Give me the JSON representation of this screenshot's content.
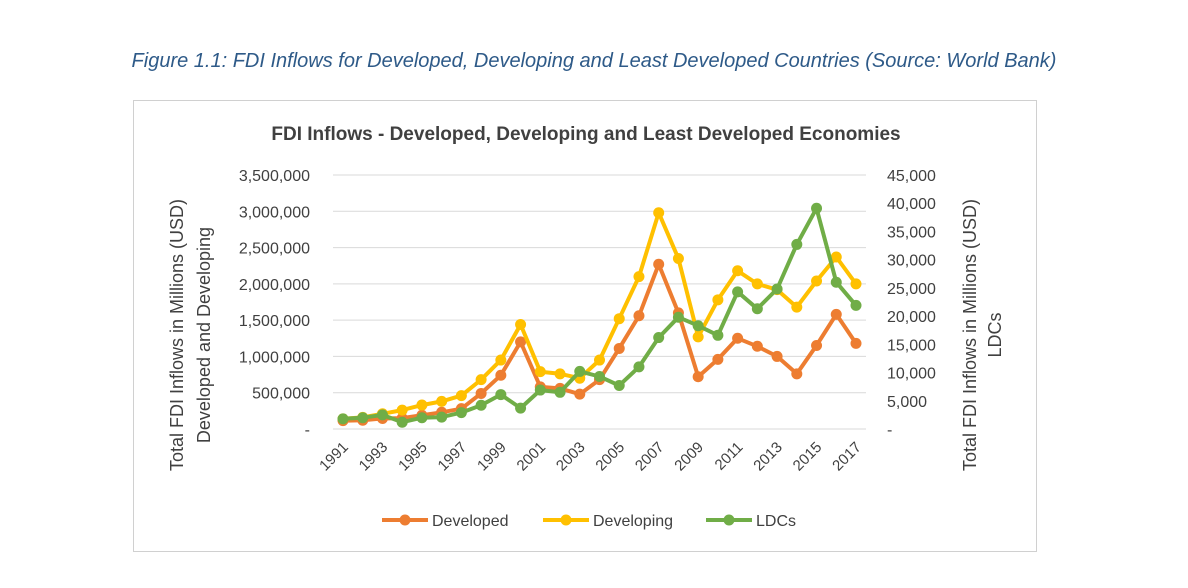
{
  "figure_caption": "Figure 1.1: FDI Inflows for Developed, Developing and Least Developed Countries (Source: World Bank)",
  "chart_data": {
    "type": "line",
    "title": "FDI Inflows - Developed, Developing and Least Developed Economies",
    "y_left_label_line1": "Total FDI Inflows in Millions (USD)",
    "y_left_label_line2": "Developed and Developing",
    "y_right_label_line1": "Total FDI Inflows in Millions (USD)",
    "y_right_label_line2": "LDCs",
    "x": [
      1991,
      1992,
      1993,
      1994,
      1995,
      1996,
      1997,
      1998,
      1999,
      2000,
      2001,
      2002,
      2003,
      2004,
      2005,
      2006,
      2007,
      2008,
      2009,
      2010,
      2011,
      2012,
      2013,
      2014,
      2015,
      2016,
      2017
    ],
    "x_tick_labels": [
      "1991",
      "1993",
      "1995",
      "1997",
      "1999",
      "2001",
      "2003",
      "2005",
      "2007",
      "2009",
      "2011",
      "2013",
      "2015",
      "2017"
    ],
    "y_left_lim": [
      0,
      3500000
    ],
    "y_left_ticks": [
      "-",
      "500,000",
      "1,000,000",
      "1,500,000",
      "2,000,000",
      "2,500,000",
      "3,000,000",
      "3,500,000"
    ],
    "y_right_lim": [
      0,
      45000
    ],
    "y_right_ticks": [
      "-",
      "5,000",
      "10,000",
      "15,000",
      "20,000",
      "25,000",
      "30,000",
      "35,000",
      "40,000",
      "45,000"
    ],
    "grid": true,
    "legend_position": "bottom",
    "series": [
      {
        "name": "Developed",
        "axis": "left",
        "color": "#ed7d31",
        "values": [
          115000,
          120000,
          145000,
          150000,
          190000,
          230000,
          280000,
          490000,
          740000,
          1200000,
          580000,
          560000,
          480000,
          680000,
          1110000,
          1560000,
          2270000,
          1600000,
          720000,
          960000,
          1250000,
          1140000,
          1000000,
          760000,
          1150000,
          1580000,
          1180000
        ]
      },
      {
        "name": "Developing",
        "axis": "left",
        "color": "#ffc000",
        "values": [
          140000,
          160000,
          210000,
          260000,
          330000,
          380000,
          460000,
          680000,
          950000,
          1440000,
          790000,
          760000,
          700000,
          950000,
          1520000,
          2100000,
          2980000,
          2350000,
          1270000,
          1780000,
          2180000,
          2000000,
          1920000,
          1680000,
          2040000,
          2370000,
          2000000
        ]
      },
      {
        "name": "LDCs",
        "axis": "right",
        "color": "#70ad47",
        "values": [
          1800,
          2000,
          2500,
          1200,
          2000,
          2100,
          2900,
          4200,
          6100,
          3700,
          6900,
          6500,
          10200,
          9300,
          7700,
          11000,
          16200,
          19800,
          18300,
          16600,
          24300,
          21300,
          24800,
          32700,
          39100,
          26000,
          21900
        ]
      }
    ]
  }
}
